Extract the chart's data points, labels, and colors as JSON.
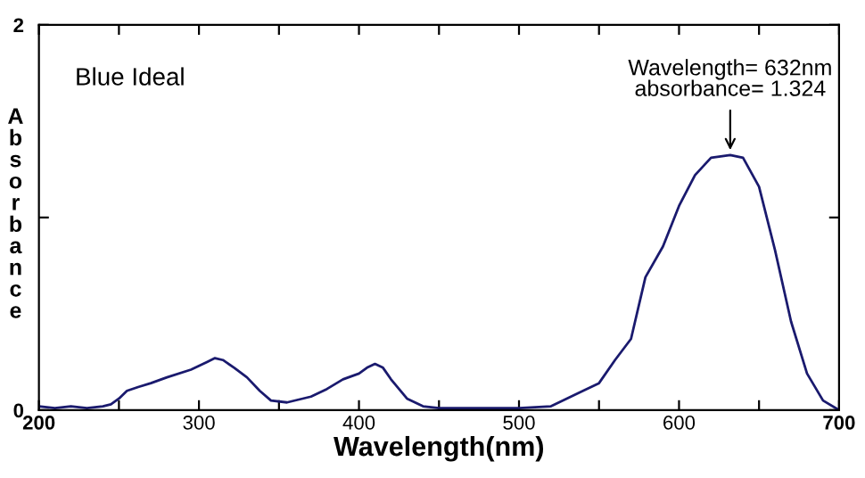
{
  "chart_data": {
    "type": "line",
    "xlabel": "Wavelength(nm)",
    "ylabel": "Absorbance",
    "annotations": [
      "Blue Ideal",
      {
        "text": "Wavelength= 632nm\nabsorbance= 1.324",
        "x": 632,
        "y": 1.324
      }
    ],
    "x": [
      200,
      210,
      220,
      230,
      240,
      245,
      250,
      255,
      262,
      270,
      280,
      295,
      305,
      310,
      315,
      322,
      330,
      338,
      345,
      355,
      370,
      380,
      390,
      400,
      405,
      410,
      415,
      420,
      430,
      440,
      450,
      470,
      500,
      520,
      540,
      550,
      560,
      570,
      579,
      590,
      600,
      610,
      620,
      632,
      640,
      650,
      660,
      670,
      680,
      690,
      700
    ],
    "series": [
      {
        "color": "#1a1a6e",
        "values": [
          0.02,
          0.01,
          0.02,
          0.01,
          0.02,
          0.03,
          0.06,
          0.1,
          0.12,
          0.14,
          0.17,
          0.21,
          0.25,
          0.27,
          0.26,
          0.22,
          0.17,
          0.1,
          0.05,
          0.04,
          0.07,
          0.11,
          0.16,
          0.19,
          0.22,
          0.24,
          0.22,
          0.16,
          0.06,
          0.02,
          0.01,
          0.01,
          0.01,
          0.02,
          0.1,
          0.14,
          0.26,
          0.37,
          0.69,
          0.85,
          1.06,
          1.22,
          1.31,
          1.324,
          1.31,
          1.16,
          0.83,
          0.46,
          0.19,
          0.05,
          0.0
        ]
      }
    ],
    "xlim": [
      200,
      700
    ],
    "ylim": [
      0,
      2
    ],
    "xticks": [
      200,
      {
        "value": 250,
        "label": null
      },
      300,
      {
        "value": 350,
        "label": null
      },
      400,
      {
        "value": 450,
        "label": null
      },
      500,
      {
        "value": 550,
        "label": null
      },
      600,
      {
        "value": 650,
        "label": null
      },
      700
    ],
    "yticks": [
      0,
      {
        "value": 1,
        "label": null
      },
      2
    ],
    "grid": false,
    "legend": false,
    "marker": "none",
    "line_style": "solid"
  }
}
